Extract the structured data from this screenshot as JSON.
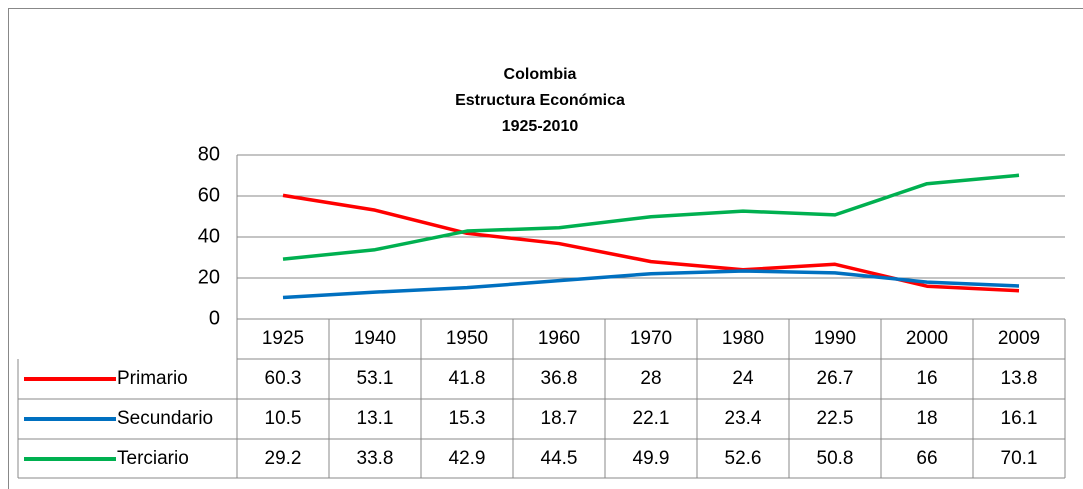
{
  "chart_data": {
    "type": "line",
    "title": [
      "Colombia",
      "Estructura Económica",
      "1925-2010"
    ],
    "categories": [
      "1925",
      "1940",
      "1950",
      "1960",
      "1970",
      "1980",
      "1990",
      "2000",
      "2009"
    ],
    "series": [
      {
        "name": "Primario",
        "color": "#ff0000",
        "values": [
          60.3,
          53.1,
          41.8,
          36.8,
          28,
          24,
          26.7,
          16,
          13.8
        ]
      },
      {
        "name": "Secundario",
        "color": "#0070c0",
        "values": [
          10.5,
          13.1,
          15.3,
          18.7,
          22.1,
          23.4,
          22.5,
          18,
          16.1
        ]
      },
      {
        "name": "Terciario",
        "color": "#00b050",
        "values": [
          29.2,
          33.8,
          42.9,
          44.5,
          49.9,
          52.6,
          50.8,
          66,
          70.1
        ]
      }
    ],
    "ylim": [
      0,
      80
    ],
    "yticks": [
      0,
      20,
      40,
      60,
      80
    ],
    "grid": true,
    "data_table": true
  }
}
